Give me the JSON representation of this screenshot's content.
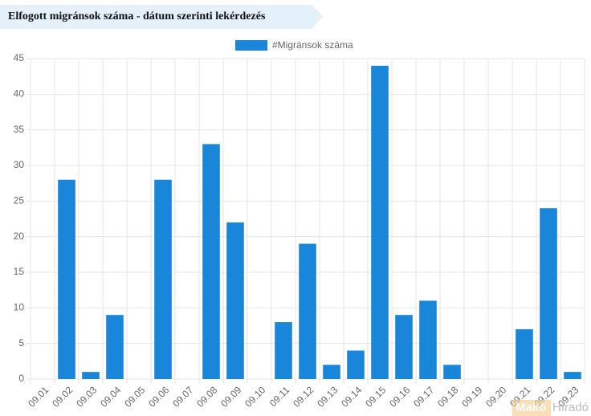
{
  "chart_data": {
    "type": "bar",
    "title": "Elfogott migránsok száma - dátum szerinti lekérdezés",
    "categories": [
      "09.01",
      "09.02",
      "09.03",
      "09.04",
      "09.05",
      "09.06",
      "09.07",
      "09.08",
      "09.09",
      "09.10",
      "09.11",
      "09.12",
      "09.13",
      "09.14",
      "09.15",
      "09.16",
      "09.17",
      "09.18",
      "09.19",
      "09.20",
      "09.21",
      "09.22",
      "09.23"
    ],
    "series": [
      {
        "name": "#Migránsok száma",
        "color": "#1a86d9",
        "values": [
          0,
          28,
          1,
          9,
          0,
          28,
          0,
          33,
          22,
          0,
          8,
          19,
          2,
          4,
          44,
          9,
          11,
          2,
          0,
          0,
          7,
          24,
          1
        ]
      }
    ],
    "ylim": [
      0,
      45
    ],
    "yticks": [
      0,
      5,
      10,
      15,
      20,
      25,
      30,
      35,
      40,
      45
    ],
    "grid": true,
    "legend": "top",
    "watermark": [
      "Makó",
      "Híradó"
    ]
  }
}
